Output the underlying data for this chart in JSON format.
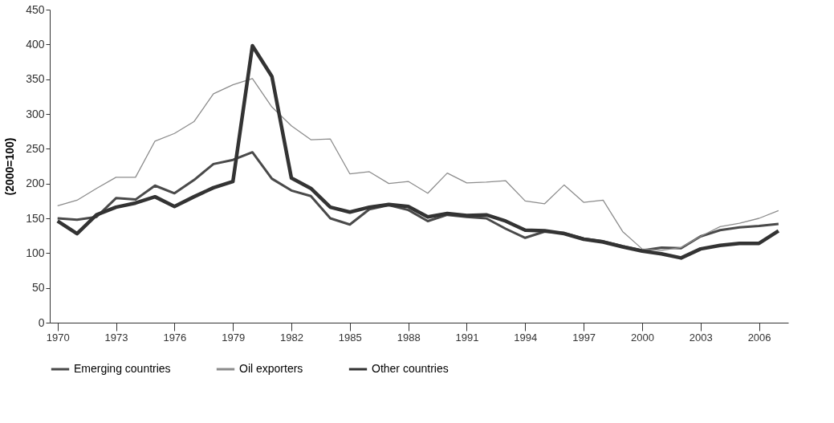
{
  "chart_data": {
    "type": "line",
    "ylabel": "(2000=100)",
    "x": [
      1970,
      1971,
      1972,
      1973,
      1974,
      1975,
      1976,
      1977,
      1978,
      1979,
      1980,
      1981,
      1982,
      1983,
      1984,
      1985,
      1986,
      1987,
      1988,
      1989,
      1990,
      1991,
      1992,
      1993,
      1994,
      1995,
      1996,
      1997,
      1998,
      1999,
      2000,
      2001,
      2002,
      2003,
      2004,
      2005,
      2006,
      2007
    ],
    "series": [
      {
        "name": "Emerging countries",
        "color": "#4a4a4a",
        "values": [
          150,
          148,
          152,
          179,
          177,
          197,
          186,
          205,
          228,
          234,
          245,
          207,
          190,
          182,
          150,
          141,
          163,
          169,
          162,
          146,
          155,
          152,
          150,
          135,
          122,
          131,
          129,
          121,
          117,
          110,
          104,
          108,
          107,
          124,
          133,
          137,
          139,
          142
        ]
      },
      {
        "name": "Oil exporters",
        "color": "#8c8c8c",
        "values": [
          168,
          176,
          193,
          209,
          209,
          261,
          272,
          289,
          329,
          342,
          351,
          310,
          283,
          263,
          264,
          214,
          217,
          200,
          203,
          186,
          215,
          201,
          202,
          204,
          175,
          171,
          198,
          173,
          176,
          131,
          106,
          104,
          108,
          124,
          138,
          143,
          150,
          161
        ]
      },
      {
        "name": "Other countries",
        "color": "#333333",
        "values": [
          146,
          128,
          155,
          166,
          172,
          181,
          167,
          181,
          194,
          203,
          398,
          354,
          208,
          193,
          166,
          159,
          166,
          170,
          167,
          152,
          157,
          154,
          155,
          146,
          133,
          132,
          128,
          120,
          116,
          109,
          103,
          99,
          93,
          106,
          111,
          114,
          114,
          132
        ]
      }
    ],
    "xlim": [
      1969.6,
      2007.5
    ],
    "xticks": [
      1970,
      1973,
      1976,
      1979,
      1982,
      1985,
      1988,
      1991,
      1994,
      1997,
      2000,
      2003,
      2006
    ],
    "ylim": [
      0,
      450
    ],
    "yticks": [
      0,
      50,
      100,
      150,
      200,
      250,
      300,
      350,
      400,
      450
    ],
    "grid": false,
    "legend": "bottom",
    "marker": "none",
    "line_style": "solid"
  }
}
